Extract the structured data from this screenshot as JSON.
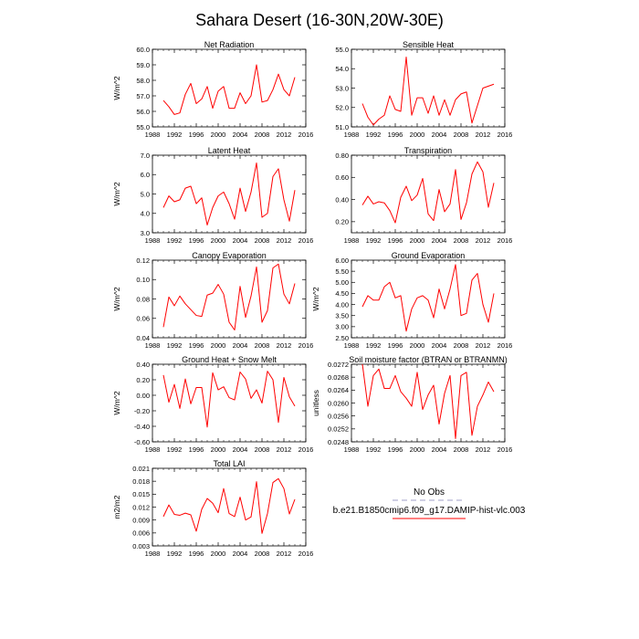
{
  "figure": {
    "title": "Sahara Desert (16-30N,20W-30E)",
    "line_color": "#ff0000",
    "obs_color": "#a0a0c8"
  },
  "legend": {
    "obs_label": "No Obs",
    "model_label": "b.e21.B1850cmip6.f09_g17.DAMIP-hist-vlc.003"
  },
  "chart_data": [
    {
      "type": "line",
      "title": "Net Radiation",
      "ylabel": "W/m^2",
      "xlim": [
        1988,
        2016
      ],
      "ylim": [
        55.0,
        60.0
      ],
      "xticks": [
        "1988",
        "1992",
        "1996",
        "2000",
        "2004",
        "2008",
        "2012",
        "2016"
      ],
      "yticks": [
        "55.0",
        "56.0",
        "57.0",
        "58.0",
        "59.0",
        "60.0"
      ],
      "x": [
        1990,
        1991,
        1992,
        1993,
        1994,
        1995,
        1996,
        1997,
        1998,
        1999,
        2000,
        2001,
        2002,
        2003,
        2004,
        2005,
        2006,
        2007,
        2008,
        2009,
        2010,
        2011,
        2012,
        2013,
        2014
      ],
      "series": [
        {
          "values": [
            56.7,
            56.3,
            55.8,
            55.9,
            57.1,
            57.8,
            56.5,
            56.8,
            57.6,
            56.2,
            57.3,
            57.6,
            56.2,
            56.2,
            57.2,
            56.5,
            57.0,
            59.0,
            56.6,
            56.7,
            57.4,
            58.4,
            57.4,
            57.0,
            58.2
          ]
        }
      ]
    },
    {
      "type": "line",
      "title": "Sensible Heat",
      "ylabel": "",
      "xlim": [
        1988,
        2016
      ],
      "ylim": [
        51.0,
        55.0
      ],
      "xticks": [
        "1988",
        "1992",
        "1996",
        "2000",
        "2004",
        "2008",
        "2012",
        "2016"
      ],
      "yticks": [
        "51.0",
        "52.0",
        "53.0",
        "54.0",
        "55.0"
      ],
      "x": [
        1990,
        1991,
        1992,
        1993,
        1994,
        1995,
        1996,
        1997,
        1998,
        1999,
        2000,
        2001,
        2002,
        2003,
        2004,
        2005,
        2006,
        2007,
        2008,
        2009,
        2010,
        2011,
        2012,
        2013,
        2014
      ],
      "series": [
        {
          "values": [
            52.2,
            51.5,
            51.1,
            51.4,
            51.6,
            52.6,
            51.9,
            51.8,
            54.6,
            51.6,
            52.5,
            52.5,
            51.7,
            52.6,
            51.6,
            52.4,
            51.6,
            52.4,
            52.7,
            52.8,
            51.2,
            52.1,
            53.0,
            53.1,
            53.2
          ]
        }
      ]
    },
    {
      "type": "line",
      "title": "Latent Heat",
      "ylabel": "W/m^2",
      "xlim": [
        1988,
        2016
      ],
      "ylim": [
        3.0,
        7.0
      ],
      "xticks": [
        "1988",
        "1992",
        "1996",
        "2000",
        "2004",
        "2008",
        "2012",
        "2016"
      ],
      "yticks": [
        "3.0",
        "4.0",
        "5.0",
        "6.0",
        "7.0"
      ],
      "x": [
        1990,
        1991,
        1992,
        1993,
        1994,
        1995,
        1996,
        1997,
        1998,
        1999,
        2000,
        2001,
        2002,
        2003,
        2004,
        2005,
        2006,
        2007,
        2008,
        2009,
        2010,
        2011,
        2012,
        2013,
        2014
      ],
      "series": [
        {
          "values": [
            4.3,
            4.9,
            4.6,
            4.7,
            5.3,
            5.4,
            4.5,
            4.8,
            3.4,
            4.3,
            4.9,
            5.1,
            4.5,
            3.7,
            5.3,
            4.1,
            5.1,
            6.6,
            3.8,
            4.0,
            5.9,
            6.3,
            4.7,
            3.6,
            5.2
          ]
        }
      ]
    },
    {
      "type": "line",
      "title": "Transpiration",
      "ylabel": "",
      "xlim": [
        1988,
        2016
      ],
      "ylim": [
        0.1,
        0.8
      ],
      "xticks": [
        "1988",
        "1992",
        "1996",
        "2000",
        "2004",
        "2008",
        "2012",
        "2016"
      ],
      "yticks": [
        "0.20",
        "0.40",
        "0.60",
        "0.80"
      ],
      "x": [
        1990,
        1991,
        1992,
        1993,
        1994,
        1995,
        1996,
        1997,
        1998,
        1999,
        2000,
        2001,
        2002,
        2003,
        2004,
        2005,
        2006,
        2007,
        2008,
        2009,
        2010,
        2011,
        2012,
        2013,
        2014
      ],
      "series": [
        {
          "values": [
            0.35,
            0.43,
            0.36,
            0.38,
            0.37,
            0.3,
            0.19,
            0.42,
            0.52,
            0.39,
            0.44,
            0.59,
            0.27,
            0.21,
            0.49,
            0.29,
            0.36,
            0.67,
            0.22,
            0.37,
            0.63,
            0.74,
            0.65,
            0.33,
            0.55
          ]
        }
      ]
    },
    {
      "type": "line",
      "title": "Canopy Evaporation",
      "ylabel": "W/m^2",
      "xlim": [
        1988,
        2016
      ],
      "ylim": [
        0.04,
        0.12
      ],
      "xticks": [
        "1988",
        "1992",
        "1996",
        "2000",
        "2004",
        "2008",
        "2012",
        "2016"
      ],
      "yticks": [
        "0.04",
        "0.06",
        "0.08",
        "0.10",
        "0.12"
      ],
      "x": [
        1990,
        1991,
        1992,
        1993,
        1994,
        1995,
        1996,
        1997,
        1998,
        1999,
        2000,
        2001,
        2002,
        2003,
        2004,
        2005,
        2006,
        2007,
        2008,
        2009,
        2010,
        2011,
        2012,
        2013,
        2014
      ],
      "series": [
        {
          "values": [
            0.051,
            0.082,
            0.073,
            0.083,
            0.075,
            0.069,
            0.063,
            0.062,
            0.084,
            0.086,
            0.095,
            0.085,
            0.056,
            0.048,
            0.093,
            0.061,
            0.083,
            0.113,
            0.056,
            0.068,
            0.112,
            0.116,
            0.085,
            0.075,
            0.096
          ]
        }
      ]
    },
    {
      "type": "line",
      "title": "Ground Evaporation",
      "ylabel": "W/m^2",
      "xlim": [
        1988,
        2016
      ],
      "ylim": [
        2.5,
        6.0
      ],
      "xticks": [
        "1988",
        "1992",
        "1996",
        "2000",
        "2004",
        "2008",
        "2012",
        "2016"
      ],
      "yticks": [
        "2.50",
        "3.00",
        "3.50",
        "4.00",
        "4.50",
        "5.00",
        "5.50",
        "6.00"
      ],
      "x": [
        1990,
        1991,
        1992,
        1993,
        1994,
        1995,
        1996,
        1997,
        1998,
        1999,
        2000,
        2001,
        2002,
        2003,
        2004,
        2005,
        2006,
        2007,
        2008,
        2009,
        2010,
        2011,
        2012,
        2013,
        2014
      ],
      "series": [
        {
          "values": [
            3.9,
            4.4,
            4.2,
            4.2,
            4.8,
            5.0,
            4.3,
            4.4,
            2.8,
            3.8,
            4.3,
            4.4,
            4.2,
            3.4,
            4.7,
            3.8,
            4.7,
            5.8,
            3.5,
            3.6,
            5.1,
            5.4,
            4.0,
            3.2,
            4.5
          ]
        }
      ]
    },
    {
      "type": "line",
      "title": "Ground Heat + Snow Melt",
      "ylabel": "W/m^2",
      "xlim": [
        1988,
        2016
      ],
      "ylim": [
        -0.6,
        0.4
      ],
      "xticks": [
        "1988",
        "1992",
        "1996",
        "2000",
        "2004",
        "2008",
        "2012",
        "2016"
      ],
      "yticks": [
        "-0.60",
        "-0.40",
        "-0.20",
        "0.00",
        "0.20",
        "0.40"
      ],
      "x": [
        1990,
        1991,
        1992,
        1993,
        1994,
        1995,
        1996,
        1997,
        1998,
        1999,
        2000,
        2001,
        2002,
        2003,
        2004,
        2005,
        2006,
        2007,
        2008,
        2009,
        2010,
        2011,
        2012,
        2013,
        2014
      ],
      "series": [
        {
          "values": [
            0.26,
            -0.09,
            0.14,
            -0.17,
            0.21,
            -0.11,
            0.1,
            0.1,
            -0.41,
            0.29,
            0.07,
            0.11,
            -0.03,
            -0.06,
            0.3,
            0.21,
            -0.04,
            0.07,
            -0.1,
            0.31,
            0.2,
            -0.35,
            0.23,
            -0.02,
            -0.14
          ]
        }
      ]
    },
    {
      "type": "line",
      "title": "Soil moisture factor (BTRAN or BTRANMN)",
      "ylabel": "unitless",
      "xlim": [
        1988,
        2016
      ],
      "ylim": [
        0.0248,
        0.0272
      ],
      "xticks": [
        "1988",
        "1992",
        "1996",
        "2000",
        "2004",
        "2008",
        "2012",
        "2016"
      ],
      "yticks": [
        "0.0248",
        "0.0252",
        "0.0256",
        "0.0260",
        "0.0264",
        "0.0268",
        "0.0272"
      ],
      "x": [
        1990,
        1991,
        1992,
        1993,
        1994,
        1995,
        1996,
        1997,
        1998,
        1999,
        2000,
        2001,
        2002,
        2003,
        2004,
        2005,
        2006,
        2007,
        2008,
        2009,
        2010,
        2011,
        2012,
        2013,
        2014
      ],
      "series": [
        {
          "values": [
            0.02725,
            0.0259,
            0.02685,
            0.02705,
            0.02645,
            0.02645,
            0.02685,
            0.02635,
            0.02615,
            0.0259,
            0.02695,
            0.0258,
            0.02625,
            0.02655,
            0.02535,
            0.0263,
            0.02685,
            0.0249,
            0.02685,
            0.02695,
            0.025,
            0.0259,
            0.02625,
            0.02665,
            0.02635
          ]
        }
      ]
    },
    {
      "type": "line",
      "title": "Total LAI",
      "ylabel": "m2/m2",
      "xlim": [
        1988,
        2016
      ],
      "ylim": [
        0.003,
        0.021
      ],
      "xticks": [
        "1988",
        "1992",
        "1996",
        "2000",
        "2004",
        "2008",
        "2012",
        "2016"
      ],
      "yticks": [
        "0.003",
        "0.006",
        "0.009",
        "0.012",
        "0.015",
        "0.018",
        "0.021"
      ],
      "x": [
        1990,
        1991,
        1992,
        1993,
        1994,
        1995,
        1996,
        1997,
        1998,
        1999,
        2000,
        2001,
        2002,
        2003,
        2004,
        2005,
        2006,
        2007,
        2008,
        2009,
        2010,
        2011,
        2012,
        2013,
        2014
      ],
      "series": [
        {
          "values": [
            0.0098,
            0.0125,
            0.0103,
            0.0101,
            0.0106,
            0.0102,
            0.0064,
            0.0115,
            0.014,
            0.0129,
            0.0107,
            0.0163,
            0.0105,
            0.0098,
            0.0143,
            0.009,
            0.0097,
            0.0179,
            0.0059,
            0.0105,
            0.0177,
            0.0186,
            0.0163,
            0.0104,
            0.0138
          ]
        }
      ]
    }
  ]
}
